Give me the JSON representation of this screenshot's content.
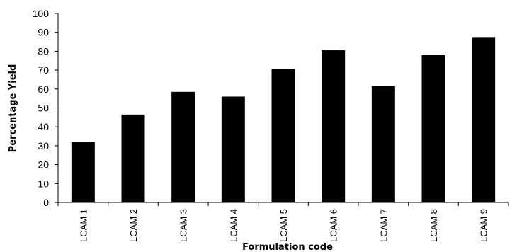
{
  "chart_data": {
    "type": "bar",
    "title": "",
    "xlabel": "Formulation code",
    "ylabel": "Percentage Yield",
    "categories": [
      "LCAM 1",
      "LCAM 2",
      "LCAM 3",
      "LCAM 4",
      "LCAM 5",
      "LCAM 6",
      "LCAM 7",
      "LCAM 8",
      "LCAM 9"
    ],
    "values": [
      32,
      46.5,
      58.5,
      56,
      70.5,
      80.5,
      61.5,
      78,
      87.5
    ],
    "ylim": [
      0,
      100
    ],
    "yticks": [
      "0",
      "10",
      "20",
      "30",
      "40",
      "50",
      "60",
      "70",
      "80",
      "90",
      "100"
    ],
    "grid": false,
    "legend": "none",
    "bar_color": "#000000"
  }
}
